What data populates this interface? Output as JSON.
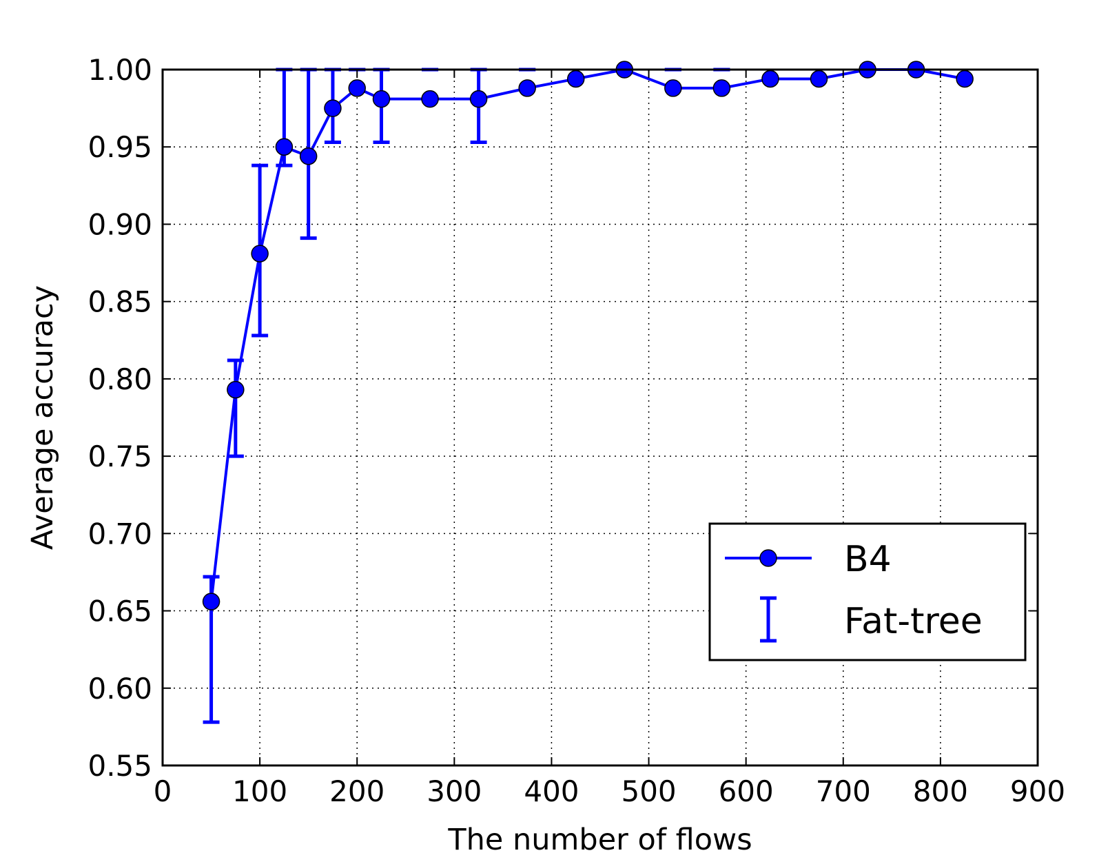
{
  "chart_data": {
    "type": "line",
    "xlabel": "The number of flows",
    "ylabel": "Average accuracy",
    "xlim": [
      0,
      900
    ],
    "ylim": [
      0.55,
      1.0
    ],
    "xticks": [
      "0",
      "100",
      "200",
      "300",
      "400",
      "500",
      "600",
      "700",
      "800",
      "900"
    ],
    "yticks": [
      "0.55",
      "0.60",
      "0.65",
      "0.70",
      "0.75",
      "0.80",
      "0.85",
      "0.90",
      "0.95",
      "1.00"
    ],
    "grid": true,
    "legend_position": "lower-right",
    "series": [
      {
        "name": "B4",
        "style": "line-with-circle-markers",
        "color": "#0000ff",
        "x": [
          50,
          75,
          100,
          125,
          150,
          175,
          200,
          225,
          275,
          325,
          375,
          425,
          475,
          525,
          575,
          625,
          675,
          725,
          775,
          825
        ],
        "y": [
          0.656,
          0.793,
          0.881,
          0.95,
          0.944,
          0.975,
          0.988,
          0.981,
          0.981,
          0.981,
          0.988,
          0.994,
          1.0,
          0.988,
          0.988,
          0.994,
          0.994,
          1.0,
          1.0,
          0.994
        ]
      },
      {
        "name": "Fat-tree",
        "style": "error-bars",
        "color": "#0000ff",
        "x": [
          50,
          75,
          100,
          125,
          150,
          175,
          200,
          225,
          275,
          325,
          375,
          475,
          525,
          575,
          725,
          775
        ],
        "low": [
          0.578,
          0.75,
          0.828,
          0.938,
          0.891,
          0.953,
          1.0,
          0.953,
          1.0,
          0.953,
          1.0,
          1.0,
          1.0,
          1.0,
          1.0,
          1.0
        ],
        "high": [
          0.672,
          0.812,
          0.938,
          1.0,
          1.0,
          1.0,
          1.0,
          1.0,
          1.0,
          1.0,
          1.0,
          1.0,
          1.0,
          1.0,
          1.0,
          1.0
        ]
      }
    ]
  }
}
